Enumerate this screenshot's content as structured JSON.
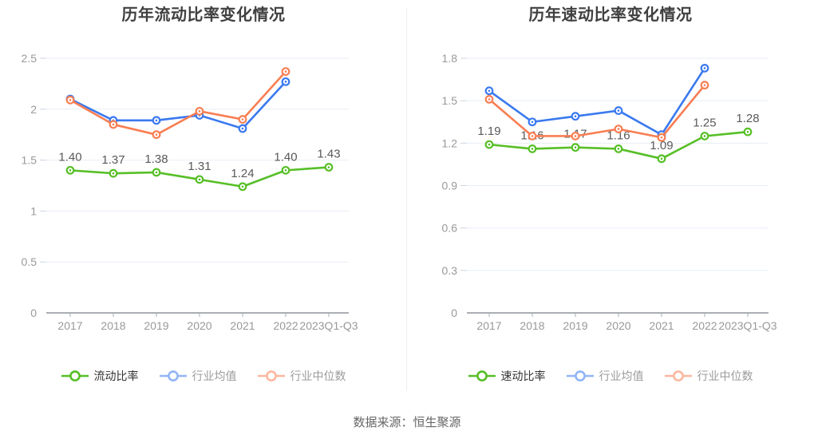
{
  "footer": {
    "text": "数据来源：恒生聚源"
  },
  "colors": {
    "green": "#57bf27",
    "blue": "#3a79ef",
    "orange": "#f87e53",
    "grid_line": "#e7edf5",
    "grid_stub": "#ccd5e0",
    "axis_line": "#8f9399",
    "axis_tick": "#a9adb4",
    "axis_label": "#999999",
    "data_label": "#595959",
    "title_text": "#404040"
  },
  "chart_data": [
    {
      "type": "line",
      "title": "历年流动比率变化情况",
      "categories": [
        "2017",
        "2018",
        "2019",
        "2020",
        "2021",
        "2022",
        "2023Q1-Q3"
      ],
      "ylim": [
        0,
        2.5
      ],
      "y_ticks": [
        "0",
        "0.5",
        "1",
        "1.5",
        "2",
        "2.5"
      ],
      "grid": true,
      "legend_position": "bottom",
      "series": [
        {
          "name": "流动比率",
          "color_key": "green",
          "show_labels": true,
          "values": [
            1.4,
            1.37,
            1.38,
            1.31,
            1.24,
            1.4,
            1.43
          ],
          "labels": [
            "1.40",
            "1.37",
            "1.38",
            "1.31",
            "1.24",
            "1.40",
            "1.43"
          ]
        },
        {
          "name": "行业均值",
          "color_key": "blue",
          "show_labels": false,
          "values": [
            2.1,
            1.89,
            1.89,
            1.94,
            1.81,
            2.27
          ]
        },
        {
          "name": "行业中位数",
          "color_key": "orange",
          "show_labels": false,
          "values": [
            2.09,
            1.85,
            1.75,
            1.98,
            1.9,
            2.37
          ]
        }
      ]
    },
    {
      "type": "line",
      "title": "历年速动比率变化情况",
      "categories": [
        "2017",
        "2018",
        "2019",
        "2020",
        "2021",
        "2022",
        "2023Q1-Q3"
      ],
      "ylim": [
        0,
        1.8
      ],
      "y_ticks": [
        "0",
        "0.3",
        "0.6",
        "0.9",
        "1.2",
        "1.5",
        "1.8"
      ],
      "grid": true,
      "legend_position": "bottom",
      "series": [
        {
          "name": "速动比率",
          "color_key": "green",
          "show_labels": true,
          "values": [
            1.19,
            1.16,
            1.17,
            1.16,
            1.09,
            1.25,
            1.28
          ],
          "labels": [
            "1.19",
            "1.16",
            "1.17",
            "1.16",
            "1.09",
            "1.25",
            "1.28"
          ]
        },
        {
          "name": "行业均值",
          "color_key": "blue",
          "show_labels": false,
          "values": [
            1.57,
            1.35,
            1.39,
            1.43,
            1.26,
            1.73
          ]
        },
        {
          "name": "行业中位数",
          "color_key": "orange",
          "show_labels": false,
          "values": [
            1.51,
            1.25,
            1.25,
            1.3,
            1.24,
            1.61
          ]
        }
      ]
    }
  ]
}
